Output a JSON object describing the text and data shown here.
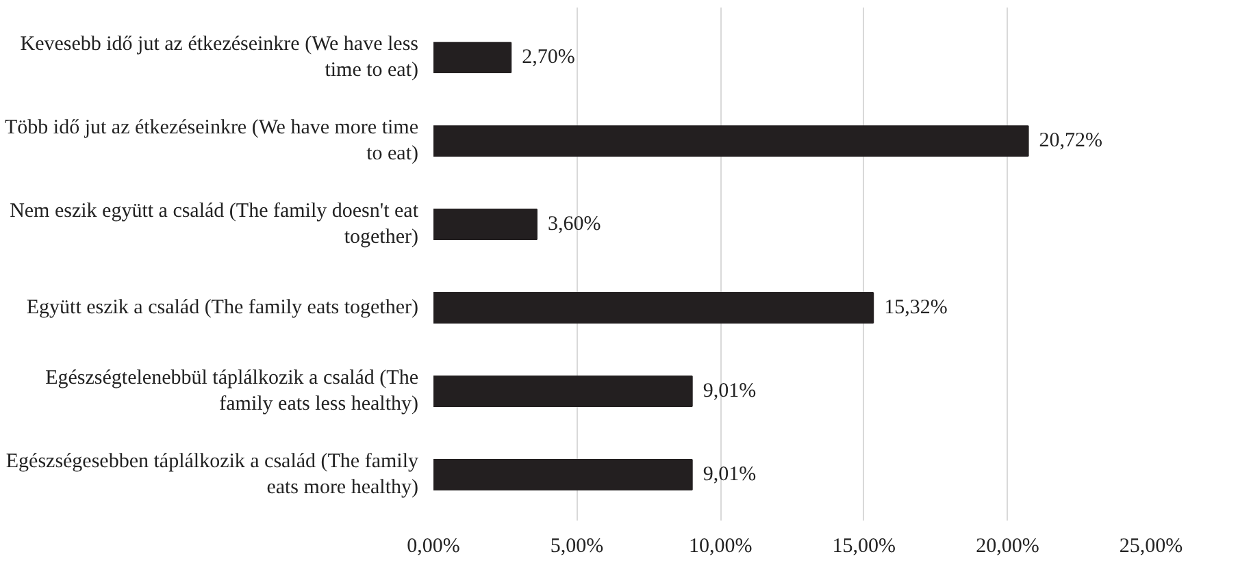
{
  "chart_data": {
    "type": "bar",
    "orientation": "horizontal",
    "categories": [
      "Kevesebb idő jut az étkezéseinkre (We have less time to eat)",
      "Több idő jut az étkezéseinkre (We have more time to eat)",
      "Nem eszik együtt a család (The family doesn't eat together)",
      "Együtt eszik a család (The family eats together)",
      "Egészségtelenebbül táplálkozik a család (The family eats less healthy)",
      "Egészségesebben táplálkozik a család (The family eats more healthy)"
    ],
    "values": [
      2.7,
      20.72,
      3.6,
      15.32,
      9.01,
      9.01
    ],
    "value_labels": [
      "2,70%",
      "20,72%",
      "3,60%",
      "15,32%",
      "9,01%",
      "9,01%"
    ],
    "color": "#231f20",
    "xlim": [
      0,
      25
    ],
    "xticks": [
      {
        "value": 0,
        "label": "0,00%"
      },
      {
        "value": 5,
        "label": "5,00%"
      },
      {
        "value": 10,
        "label": "10,00%"
      },
      {
        "value": 15,
        "label": "15,00%"
      },
      {
        "value": 20,
        "label": "20,00%"
      },
      {
        "value": 25,
        "label": "25,00%"
      }
    ],
    "grid": "x"
  }
}
